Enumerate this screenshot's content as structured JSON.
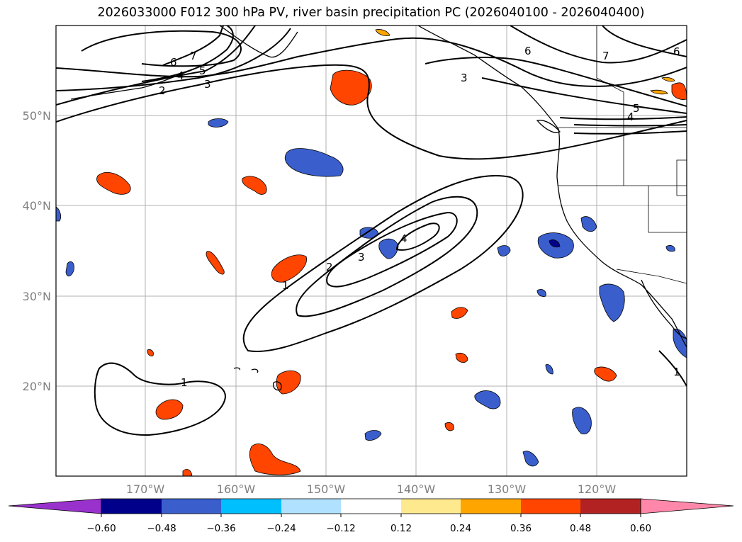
{
  "title": "2026033000 F012 300 hPa PV, river basin precipitation PC (2026040100 - 2026040400)",
  "lon_labels": [
    "170°W",
    "160°W",
    "150°W",
    "140°W",
    "130°W",
    "120°W"
  ],
  "lat_labels": [
    "50°N",
    "40°N",
    "30°N",
    "20°N"
  ],
  "contour_labels": [
    "7",
    "6",
    "5",
    "4",
    "3",
    "2",
    "6",
    "7",
    "6",
    "3",
    "5",
    "4",
    "4",
    "3",
    "2",
    "1",
    "1",
    "1"
  ],
  "colorbar": {
    "ticks": [
      "−0.60",
      "−0.48",
      "−0.36",
      "−0.24",
      "−0.12",
      "0.12",
      "0.24",
      "0.36",
      "0.48",
      "0.60"
    ],
    "colors": [
      "#9932CC",
      "#00008B",
      "#3A5FCD",
      "#00BFFF",
      "#B0E2FF",
      "#FFFFFF",
      "#FFE98F",
      "#FFA500",
      "#FF4500",
      "#B22222",
      "#FF88AA"
    ]
  }
}
